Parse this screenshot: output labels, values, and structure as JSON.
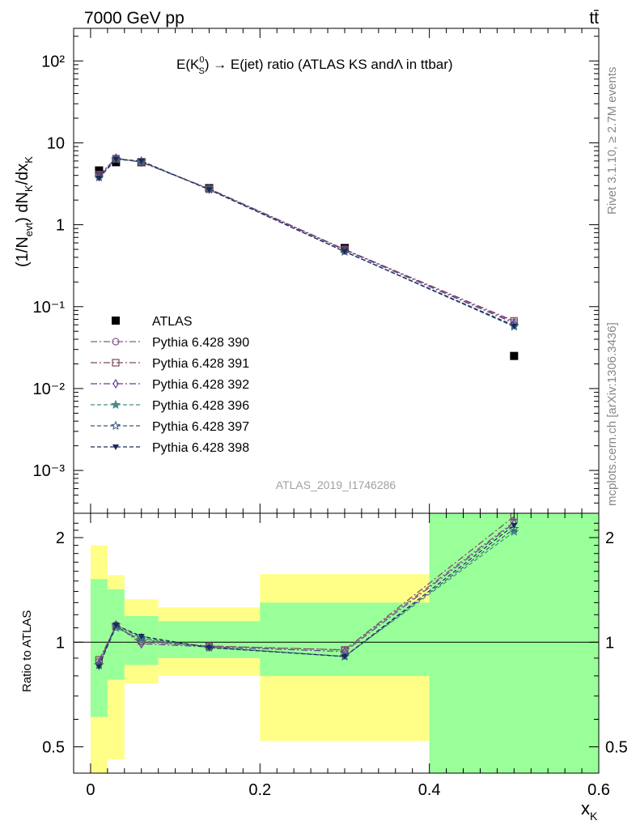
{
  "header": {
    "energy_label": "7000 GeV pp",
    "process_label": "tt̄"
  },
  "side_text": {
    "rivet": "Rivet 3.1.10, ≥ 2.7M events",
    "source": "mcplots.cern.ch [arXiv:1306.3436]"
  },
  "watermark": "ATLAS_2019_I1746286",
  "chart_data": [
    {
      "type": "scatter",
      "title": "E(K⁰_S) → E(jet) ratio (ATLAS KS andΛ in ttbar)",
      "ylabel": "(1/N_evt) dN_K/dx_K",
      "xlabel": "",
      "yscale": "log",
      "xlim": [
        -0.02,
        0.6
      ],
      "ylim": [
        0.0003,
        250
      ],
      "y_tick_labels": [
        "10⁻³",
        "10⁻²",
        "10⁻¹",
        "1",
        "10",
        "10²"
      ],
      "legend_position": "lower-left",
      "x": [
        0.01,
        0.03,
        0.06,
        0.14,
        0.3,
        0.5
      ],
      "series": [
        {
          "name": "ATLAS",
          "marker": "filled-square",
          "color": "#000000",
          "values": [
            4.6,
            5.8,
            5.8,
            2.8,
            0.52,
            0.025
          ]
        },
        {
          "name": "Pythia 6.428 390",
          "marker": "open-circle",
          "color": "#8a5a8a",
          "dash": "dash-dot",
          "values": [
            4.0,
            6.5,
            5.8,
            2.75,
            0.5,
            0.065
          ]
        },
        {
          "name": "Pythia 6.428 391",
          "marker": "open-square",
          "color": "#7a4a5a",
          "dash": "dash-dot",
          "values": [
            4.1,
            6.4,
            5.85,
            2.75,
            0.5,
            0.067
          ]
        },
        {
          "name": "Pythia 6.428 392",
          "marker": "open-diamond",
          "color": "#6a3a9a",
          "dash": "dash-dot",
          "values": [
            3.9,
            6.5,
            5.8,
            2.72,
            0.49,
            0.063
          ]
        },
        {
          "name": "Pythia 6.428 396",
          "marker": "star",
          "color": "#4a8a8a",
          "dash": "dashed",
          "values": [
            3.8,
            6.3,
            5.9,
            2.7,
            0.47,
            0.057
          ]
        },
        {
          "name": "Pythia 6.428 397",
          "marker": "open-star",
          "color": "#3a5a7a",
          "dash": "dashed",
          "values": [
            3.8,
            6.35,
            6.0,
            2.7,
            0.47,
            0.059
          ]
        },
        {
          "name": "Pythia 6.428 398",
          "marker": "filled-triangle-down",
          "color": "#1a2a5a",
          "dash": "dashed",
          "values": [
            3.7,
            6.3,
            6.0,
            2.68,
            0.47,
            0.058
          ]
        }
      ]
    },
    {
      "type": "line",
      "title": "",
      "xlabel": "x_K",
      "ylabel": "Ratio to ATLAS",
      "yscale": "log",
      "xlim": [
        -0.02,
        0.6
      ],
      "ylim": [
        0.42,
        2.35
      ],
      "x_ticks": [
        0,
        0.2,
        0.4,
        0.6
      ],
      "x_tick_labels": [
        "0",
        "0.2",
        "0.4",
        "0.6"
      ],
      "y_ticks": [
        0.5,
        1,
        2
      ],
      "y_tick_labels": [
        "0.5",
        "1",
        "2"
      ],
      "reference_line": 1,
      "bands": [
        {
          "x_low": 0.0,
          "x_high": 0.02,
          "green": [
            0.61,
            1.52
          ],
          "yellow": [
            0.38,
            1.9
          ]
        },
        {
          "x_low": 0.02,
          "x_high": 0.04,
          "green": [
            0.78,
            1.42
          ],
          "yellow": [
            0.46,
            1.56
          ]
        },
        {
          "x_low": 0.04,
          "x_high": 0.08,
          "green": [
            0.86,
            1.19
          ],
          "yellow": [
            0.76,
            1.33
          ]
        },
        {
          "x_low": 0.08,
          "x_high": 0.2,
          "green": [
            0.9,
            1.15
          ],
          "yellow": [
            0.8,
            1.26
          ]
        },
        {
          "x_low": 0.2,
          "x_high": 0.4,
          "green": [
            0.8,
            1.3
          ],
          "yellow": [
            0.52,
            1.57
          ]
        },
        {
          "x_low": 0.4,
          "x_high": 0.6,
          "green": [
            0.3,
            3.0
          ],
          "yellow": [
            0.3,
            3.0
          ]
        }
      ],
      "x": [
        0.01,
        0.03,
        0.06,
        0.14,
        0.3,
        0.5
      ],
      "series": [
        {
          "name": "Pythia 6.428 390",
          "values": [
            0.88,
            1.12,
            1.0,
            0.975,
            0.95,
            2.22
          ]
        },
        {
          "name": "Pythia 6.428 391",
          "values": [
            0.89,
            1.11,
            1.01,
            0.975,
            0.95,
            2.3
          ]
        },
        {
          "name": "Pythia 6.428 392",
          "values": [
            0.87,
            1.12,
            0.99,
            0.97,
            0.94,
            2.2
          ]
        },
        {
          "name": "Pythia 6.428 396",
          "values": [
            0.86,
            1.1,
            1.02,
            0.97,
            0.91,
            2.08
          ]
        },
        {
          "name": "Pythia 6.428 397",
          "values": [
            0.86,
            1.12,
            1.03,
            0.965,
            0.91,
            2.12
          ]
        },
        {
          "name": "Pythia 6.428 398",
          "values": [
            0.85,
            1.12,
            1.04,
            0.965,
            0.91,
            2.17
          ]
        }
      ]
    }
  ]
}
